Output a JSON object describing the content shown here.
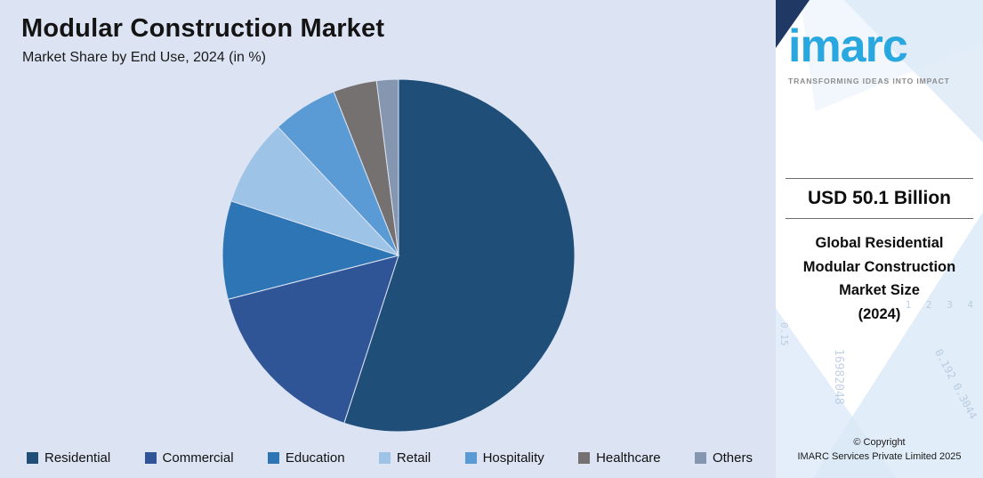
{
  "title": "Modular Construction Market",
  "subtitle": "Market Share by End Use, 2024 (in %)",
  "chart_data": {
    "type": "pie",
    "title": "Modular Construction Market",
    "subtitle": "Market Share by End Use, 2024 (in %)",
    "unit": "%",
    "categories": [
      "Residential",
      "Commercial",
      "Education",
      "Retail",
      "Hospitality",
      "Healthcare",
      "Others"
    ],
    "values": [
      55,
      16,
      9,
      8,
      6,
      4,
      2
    ],
    "colors": [
      "#1f4e79",
      "#2f5597",
      "#2e75b6",
      "#9dc3e6",
      "#5b9bd5",
      "#767171",
      "#8496b0"
    ],
    "start_angle_deg": -90,
    "direction": "clockwise",
    "legend_position": "bottom",
    "data_labels": false
  },
  "sidebar": {
    "logo_text": "imarc",
    "tagline": "TRANSFORMING IDEAS INTO IMPACT",
    "market_value": "USD 50.1 Billion",
    "market_desc": "Global Residential\nModular Construction\nMarket Size\n(2024)",
    "copyright_line1": "© Copyright",
    "copyright_line2": "IMARC Services Private Limited 2025",
    "decor_numbers": [
      "16982048",
      "0.192 0.3044",
      "1 2 3 4",
      "0.15"
    ]
  }
}
